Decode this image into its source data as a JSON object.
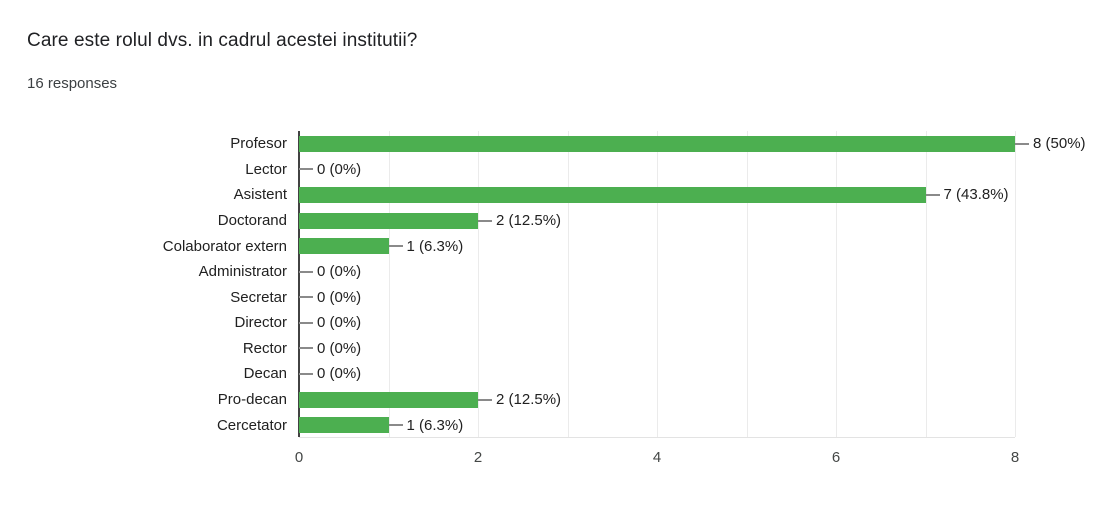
{
  "header": {
    "title": "Care este rolul dvs. in cadrul acestei institutii?",
    "responses": "16 responses"
  },
  "chart_data": {
    "type": "bar",
    "orientation": "horizontal",
    "title": "Care este rolul dvs. in cadrul acestei institutii?",
    "subtitle": "16 responses",
    "categories": [
      "Profesor",
      "Lector",
      "Asistent",
      "Doctorand",
      "Colaborator extern",
      "Administrator",
      "Secretar",
      "Director",
      "Rector",
      "Decan",
      "Pro-decan",
      "Cercetator"
    ],
    "values": [
      8,
      0,
      7,
      2,
      1,
      0,
      0,
      0,
      0,
      0,
      2,
      1
    ],
    "value_labels": [
      "8 (50%)",
      "0 (0%)",
      "7 (43.8%)",
      "2 (12.5%)",
      "1 (6.3%)",
      "0 (0%)",
      "0 (0%)",
      "0 (0%)",
      "0 (0%)",
      "0 (0%)",
      "2 (12.5%)",
      "1 (6.3%)"
    ],
    "xlim": [
      0,
      8
    ],
    "gridline_step": 1,
    "xticks": [
      0,
      2,
      4,
      6,
      8
    ],
    "xlabel": "",
    "ylabel": "",
    "grid": true,
    "legend": "none",
    "bar_color": "#4caf50",
    "connector_color": "#8a8a8a",
    "axis_color": "#424242",
    "gridline_color": "#ebebeb"
  }
}
